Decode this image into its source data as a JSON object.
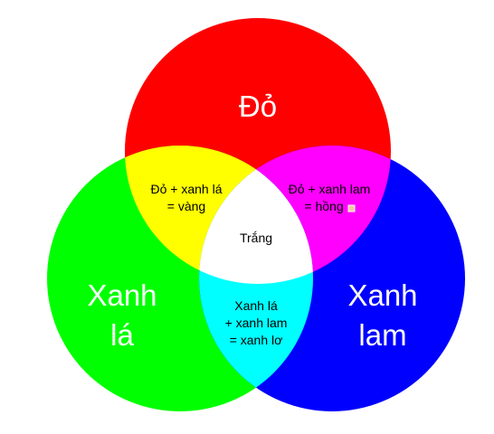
{
  "colors": {
    "red": "#ff0000",
    "green": "#00ff00",
    "blue": "#0000ff",
    "yellow": "#ffff00",
    "magenta": "#ff00ff",
    "cyan": "#00ffff",
    "white": "#ffffff"
  },
  "circles": {
    "red": "Đỏ",
    "green_line1": "Xanh",
    "green_line2": "lá",
    "blue_line1": "Xanh",
    "blue_line2": "lam"
  },
  "overlaps": {
    "red_green_line1": "Đỏ + xanh lá",
    "red_green_line2": "= vàng",
    "red_blue_line1": "Đỏ + xanh lam",
    "red_blue_line2": "= hồng",
    "green_blue_line1": "Xanh lá",
    "green_blue_line2": "+ xanh lam",
    "green_blue_line3": "= xanh lơ",
    "center": "Trắng"
  }
}
